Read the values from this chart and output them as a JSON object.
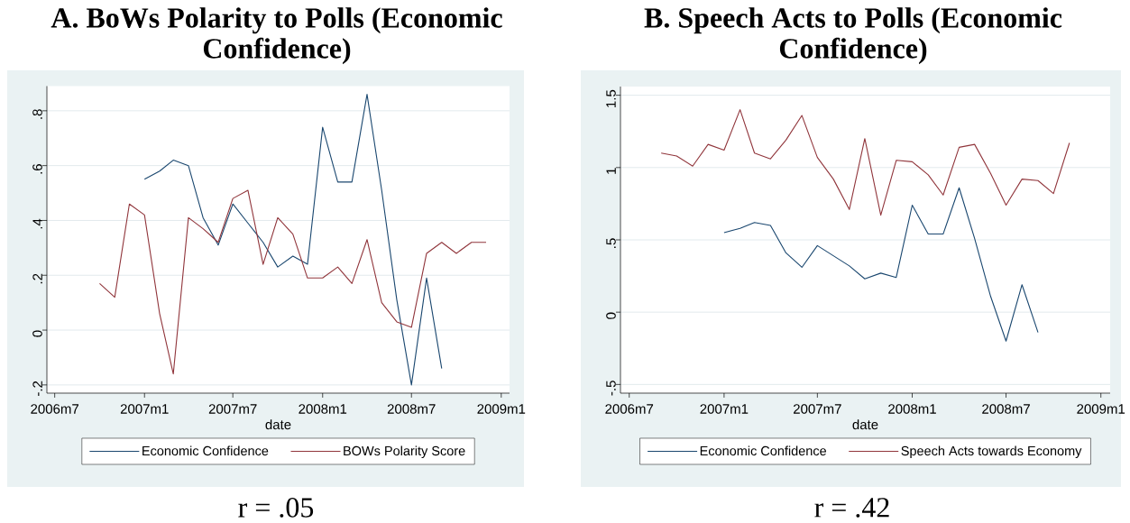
{
  "chart_data": [
    {
      "type": "line",
      "title": "A. BoWs Polarity to Polls (Economic Confidence)",
      "xlabel": "date",
      "annotations": [
        "r = .05"
      ],
      "series": [
        {
          "name": "Economic Confidence",
          "color": "#1a476f",
          "x": [
            "2007-01",
            "2007-02",
            "2007-03",
            "2007-04",
            "2007-05",
            "2007-06",
            "2007-07",
            "2007-08",
            "2007-09",
            "2007-10",
            "2007-11",
            "2007-12",
            "2008-01",
            "2008-02",
            "2008-03",
            "2008-04",
            "2008-05",
            "2008-06",
            "2008-07",
            "2008-08",
            "2008-09"
          ],
          "values": [
            0.55,
            0.58,
            0.62,
            0.6,
            0.41,
            0.31,
            0.46,
            0.39,
            0.32,
            0.23,
            0.27,
            0.24,
            0.74,
            0.54,
            0.54,
            0.86,
            0.51,
            0.11,
            -0.2,
            0.19,
            -0.14
          ]
        },
        {
          "name": "BOWs Polarity Score",
          "color": "#90353b",
          "x": [
            "2006-10",
            "2006-11",
            "2006-12",
            "2007-01",
            "2007-02",
            "2007-03",
            "2007-04",
            "2007-05",
            "2007-06",
            "2007-07",
            "2007-08",
            "2007-09",
            "2007-10",
            "2007-11",
            "2007-12",
            "2008-01",
            "2008-02",
            "2008-03",
            "2008-04",
            "2008-05",
            "2008-06",
            "2008-07",
            "2008-08",
            "2008-09",
            "2008-10",
            "2008-11",
            "2008-12"
          ],
          "values": [
            0.17,
            0.12,
            0.46,
            0.42,
            0.06,
            -0.16,
            0.41,
            0.37,
            0.32,
            0.48,
            0.51,
            0.24,
            0.41,
            0.35,
            0.19,
            0.19,
            0.23,
            0.17,
            0.33,
            0.1,
            0.03,
            0.01,
            0.28,
            0.32,
            0.28,
            0.32,
            0.32
          ]
        }
      ],
      "xlim": [
        "2006-06-15",
        "2009-01-18"
      ],
      "xticks": [
        {
          "value": "2006-07",
          "label": "2006m7"
        },
        {
          "value": "2007-01",
          "label": "2007m1"
        },
        {
          "value": "2007-07",
          "label": "2007m7"
        },
        {
          "value": "2008-01",
          "label": "2008m1"
        },
        {
          "value": "2008-07",
          "label": "2008m7"
        },
        {
          "value": "2009-01",
          "label": "2009m1"
        }
      ],
      "ylim": [
        -0.23,
        0.89
      ],
      "yticks": [
        {
          "value": -0.2,
          "label": "-.2"
        },
        0,
        {
          "value": 0.2,
          "label": ".2"
        },
        {
          "value": 0.4,
          "label": ".4"
        },
        {
          "value": 0.6,
          "label": ".6"
        },
        {
          "value": 0.8,
          "label": ".8"
        }
      ],
      "grid": "y",
      "legend": "bottom"
    },
    {
      "type": "line",
      "title": "B. Speech Acts to Polls (Economic Confidence)",
      "xlabel": "date",
      "annotations": [
        "r = .42"
      ],
      "series": [
        {
          "name": "Economic Confidence",
          "color": "#1a476f",
          "x": [
            "2007-01",
            "2007-02",
            "2007-03",
            "2007-04",
            "2007-05",
            "2007-06",
            "2007-07",
            "2007-08",
            "2007-09",
            "2007-10",
            "2007-11",
            "2007-12",
            "2008-01",
            "2008-02",
            "2008-03",
            "2008-04",
            "2008-05",
            "2008-06",
            "2008-07",
            "2008-08",
            "2008-09"
          ],
          "values": [
            0.55,
            0.58,
            0.62,
            0.6,
            0.41,
            0.31,
            0.46,
            0.39,
            0.32,
            0.23,
            0.27,
            0.24,
            0.74,
            0.54,
            0.54,
            0.86,
            0.51,
            0.11,
            -0.2,
            0.19,
            -0.14
          ]
        },
        {
          "name": "Speech Acts towards Economy",
          "color": "#90353b",
          "x": [
            "2006-09",
            "2006-10",
            "2006-11",
            "2006-12",
            "2007-01",
            "2007-02",
            "2007-03",
            "2007-04",
            "2007-05",
            "2007-06",
            "2007-07",
            "2007-08",
            "2007-09",
            "2007-10",
            "2007-11",
            "2007-12",
            "2008-01",
            "2008-02",
            "2008-03",
            "2008-04",
            "2008-05",
            "2008-06",
            "2008-07",
            "2008-08",
            "2008-09",
            "2008-10",
            "2008-11"
          ],
          "values": [
            1.1,
            1.08,
            1.01,
            1.16,
            1.12,
            1.4,
            1.1,
            1.06,
            1.19,
            1.36,
            1.07,
            0.92,
            0.71,
            1.2,
            0.67,
            1.05,
            1.04,
            0.95,
            0.81,
            1.14,
            1.16,
            0.96,
            0.74,
            0.92,
            0.91,
            0.82,
            1.17
          ]
        }
      ],
      "xlim": [
        "2006-06-14",
        "2009-01-19"
      ],
      "xticks": [
        {
          "value": "2006-07",
          "label": "2006m7"
        },
        {
          "value": "2007-01",
          "label": "2007m1"
        },
        {
          "value": "2007-07",
          "label": "2007m7"
        },
        {
          "value": "2008-01",
          "label": "2008m1"
        },
        {
          "value": "2008-07",
          "label": "2008m7"
        },
        {
          "value": "2009-01",
          "label": "2009m1"
        }
      ],
      "ylim": [
        -0.56,
        1.56
      ],
      "yticks": [
        {
          "value": -0.5,
          "label": "-.5"
        },
        0,
        {
          "value": 0.5,
          "label": ".5"
        },
        1,
        1.5
      ],
      "grid": "y",
      "legend": "bottom"
    }
  ]
}
